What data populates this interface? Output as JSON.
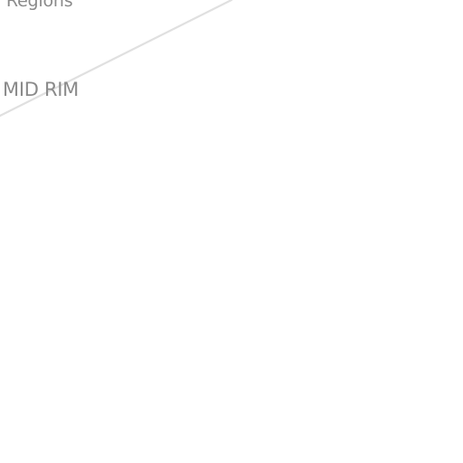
{
  "map": {
    "labels": {
      "top": "l Regions",
      "mid": "MID RIM"
    },
    "colors": {
      "background": "#ffffff",
      "label": "#8a8a8a",
      "boundary": "#e0e0e0"
    }
  }
}
